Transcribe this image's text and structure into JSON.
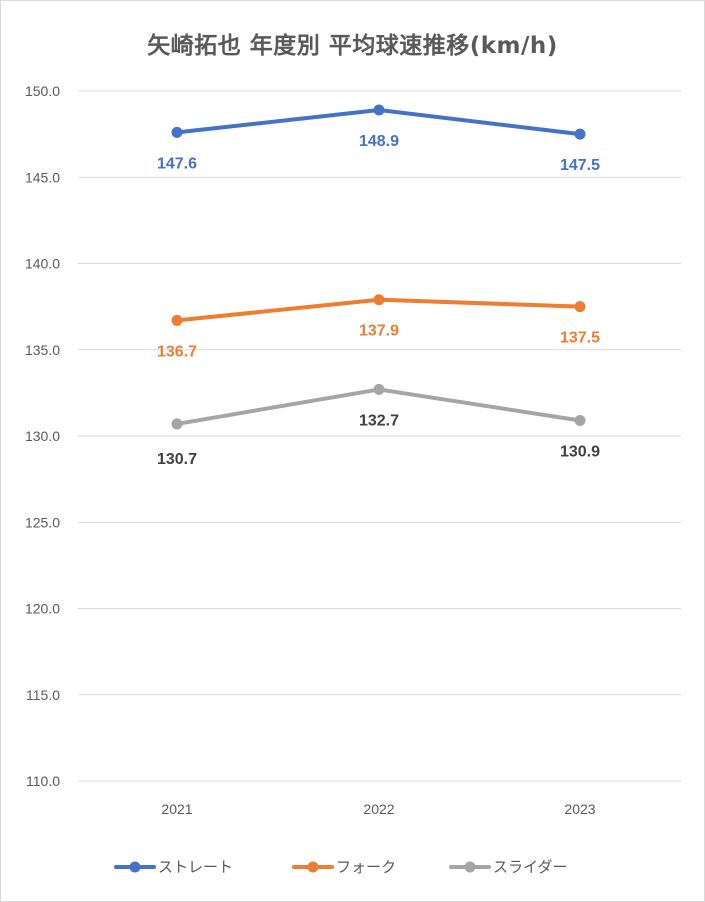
{
  "chart_data": {
    "type": "line",
    "title": "矢崎拓也 年度別 平均球速推移(km/h)",
    "categories": [
      "2021",
      "2022",
      "2023"
    ],
    "ylim": [
      110.0,
      150.0
    ],
    "yticks": [
      "110.0",
      "115.0",
      "120.0",
      "125.0",
      "130.0",
      "135.0",
      "140.0",
      "145.0",
      "150.0"
    ],
    "ystep": 5,
    "grid": true,
    "legend_position": "bottom",
    "series": [
      {
        "name": "ストレート",
        "values": [
          147.6,
          148.9,
          147.5
        ],
        "labels": [
          "147.6",
          "148.9",
          "147.5"
        ],
        "color": "#4472c4",
        "label_color": "#4472c4"
      },
      {
        "name": "フォーク",
        "values": [
          136.7,
          137.9,
          137.5
        ],
        "labels": [
          "136.7",
          "137.9",
          "137.5"
        ],
        "color": "#ed7d31",
        "label_color": "#ed7d31"
      },
      {
        "name": "スライダー",
        "values": [
          130.7,
          132.7,
          130.9
        ],
        "labels": [
          "130.7",
          "132.7",
          "130.9"
        ],
        "color": "#a5a5a5",
        "label_color": "#404040"
      }
    ]
  }
}
